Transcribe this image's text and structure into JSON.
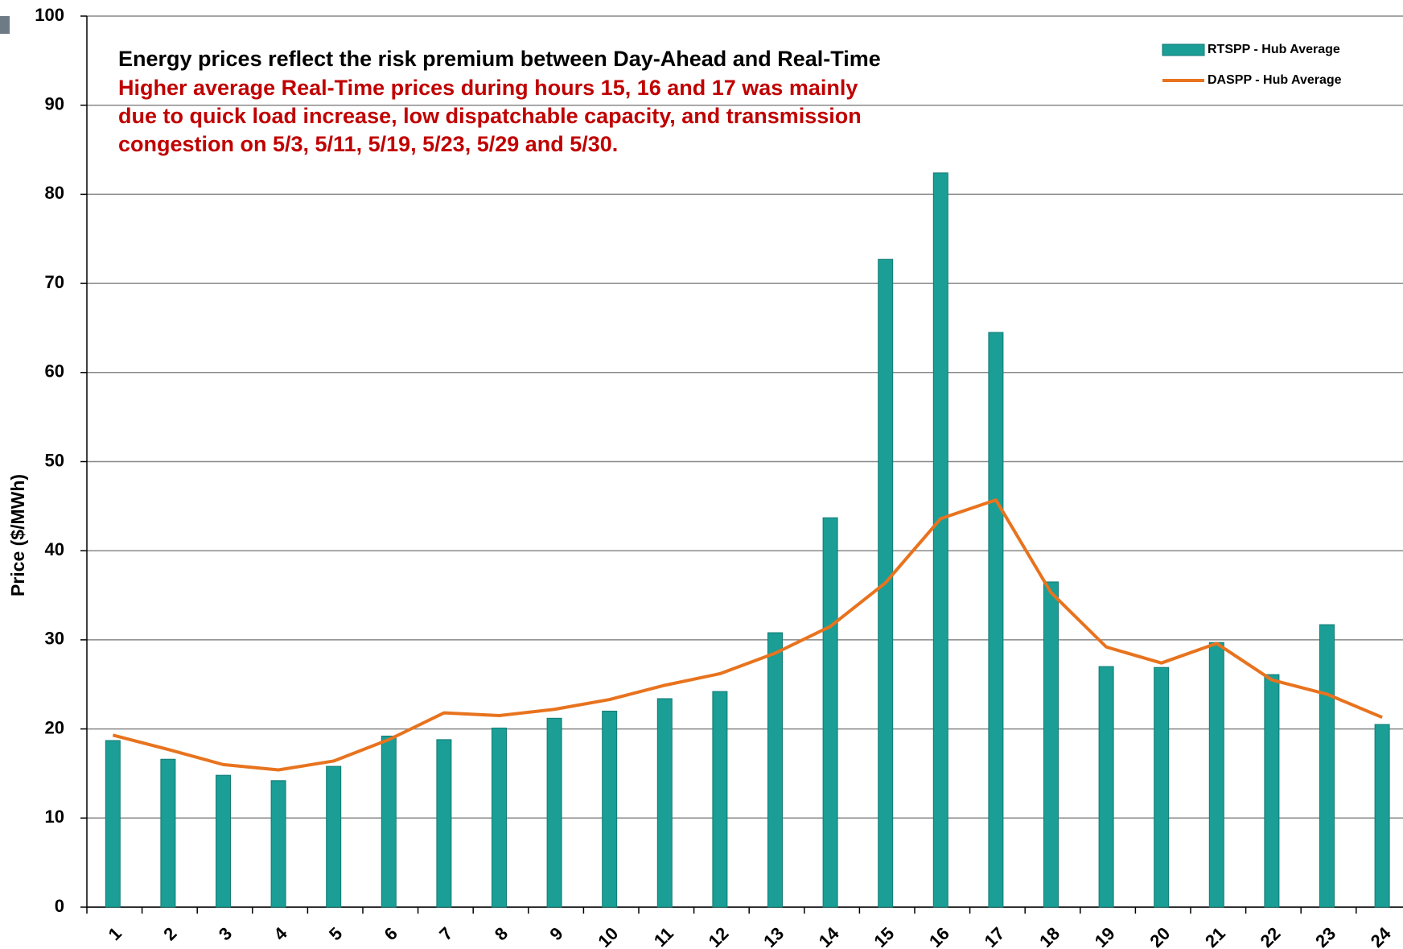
{
  "chart_data": {
    "type": "bar",
    "y_label": "Price ($/MWh)",
    "annotation": "Energy prices reflect the risk premium between Day-Ahead and Real-Time",
    "notes": [
      "Higher average Real-Time prices during hours 15, 16 and 17 was mainly",
      "due to quick load increase, low dispatchable capacity, and transmission",
      "congestion on 5/3, 5/11, 5/19, 5/23, 5/29 and 5/30."
    ],
    "categories": [
      "1",
      "2",
      "3",
      "4",
      "5",
      "6",
      "7",
      "8",
      "9",
      "10",
      "11",
      "12",
      "13",
      "14",
      "15",
      "16",
      "17",
      "18",
      "19",
      "20",
      "21",
      "22",
      "23",
      "24"
    ],
    "series": [
      {
        "name": "RTSPP - Hub Average",
        "type": "bar",
        "color": "#1a9e96",
        "values": [
          18.7,
          16.6,
          14.8,
          14.2,
          15.8,
          19.2,
          18.8,
          20.1,
          21.2,
          22.0,
          23.4,
          24.2,
          30.8,
          43.7,
          72.7,
          82.4,
          64.5,
          36.5,
          27.0,
          26.9,
          29.7,
          26.1,
          31.7,
          20.5
        ]
      },
      {
        "name": "DASPP - Hub Average",
        "type": "line",
        "color": "#e8731e",
        "values": [
          19.3,
          17.7,
          16.0,
          15.4,
          16.4,
          18.8,
          21.8,
          21.5,
          22.2,
          23.3,
          24.9,
          26.2,
          28.5,
          31.5,
          36.4,
          43.6,
          45.7,
          35.3,
          29.2,
          27.4,
          29.6,
          25.5,
          23.9,
          21.3
        ]
      }
    ],
    "ylim": [
      0,
      100
    ],
    "yticks": [
      0,
      10,
      20,
      30,
      40,
      50,
      60,
      70,
      80,
      90,
      100
    ],
    "grid": true,
    "legend": "top-right"
  }
}
